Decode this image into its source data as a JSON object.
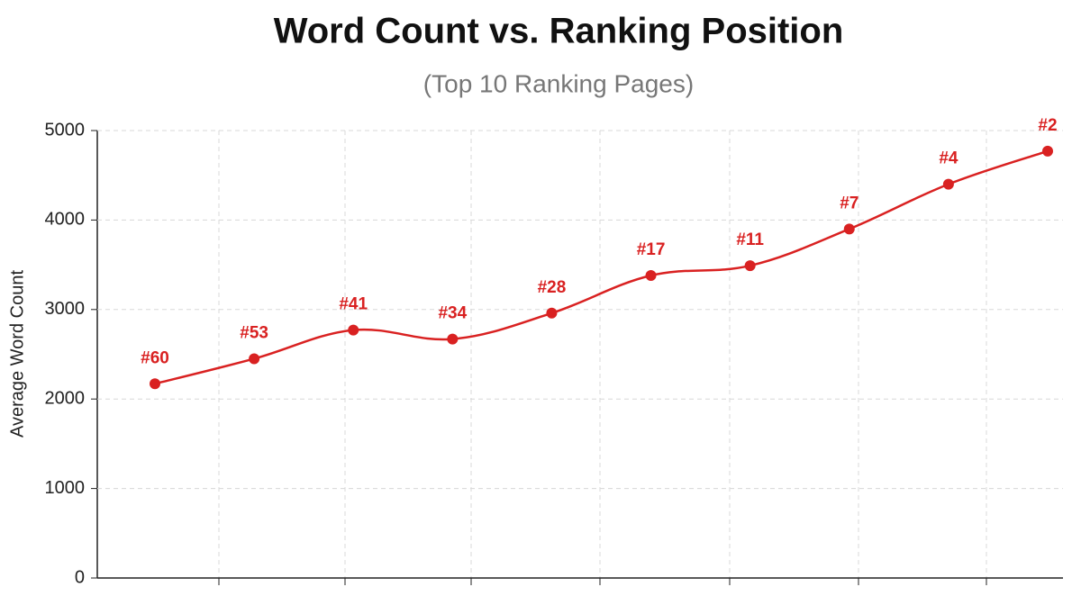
{
  "chart_data": {
    "type": "line",
    "title": "Word Count vs. Ranking Position",
    "subtitle": "(Top 10 Ranking Pages)",
    "y_label": "Average Word Count",
    "categories": [
      "#60",
      "#53",
      "#41",
      "#34",
      "#28",
      "#17",
      "#11",
      "#7",
      "#4",
      "#2"
    ],
    "values": [
      2170,
      2450,
      2770,
      2670,
      2960,
      3380,
      3490,
      3900,
      4400,
      4770
    ],
    "color": "#d92121",
    "ylim": [
      0,
      5000
    ],
    "yticks": [
      0,
      1000,
      2000,
      3000,
      4000,
      5000
    ],
    "grid": true
  }
}
